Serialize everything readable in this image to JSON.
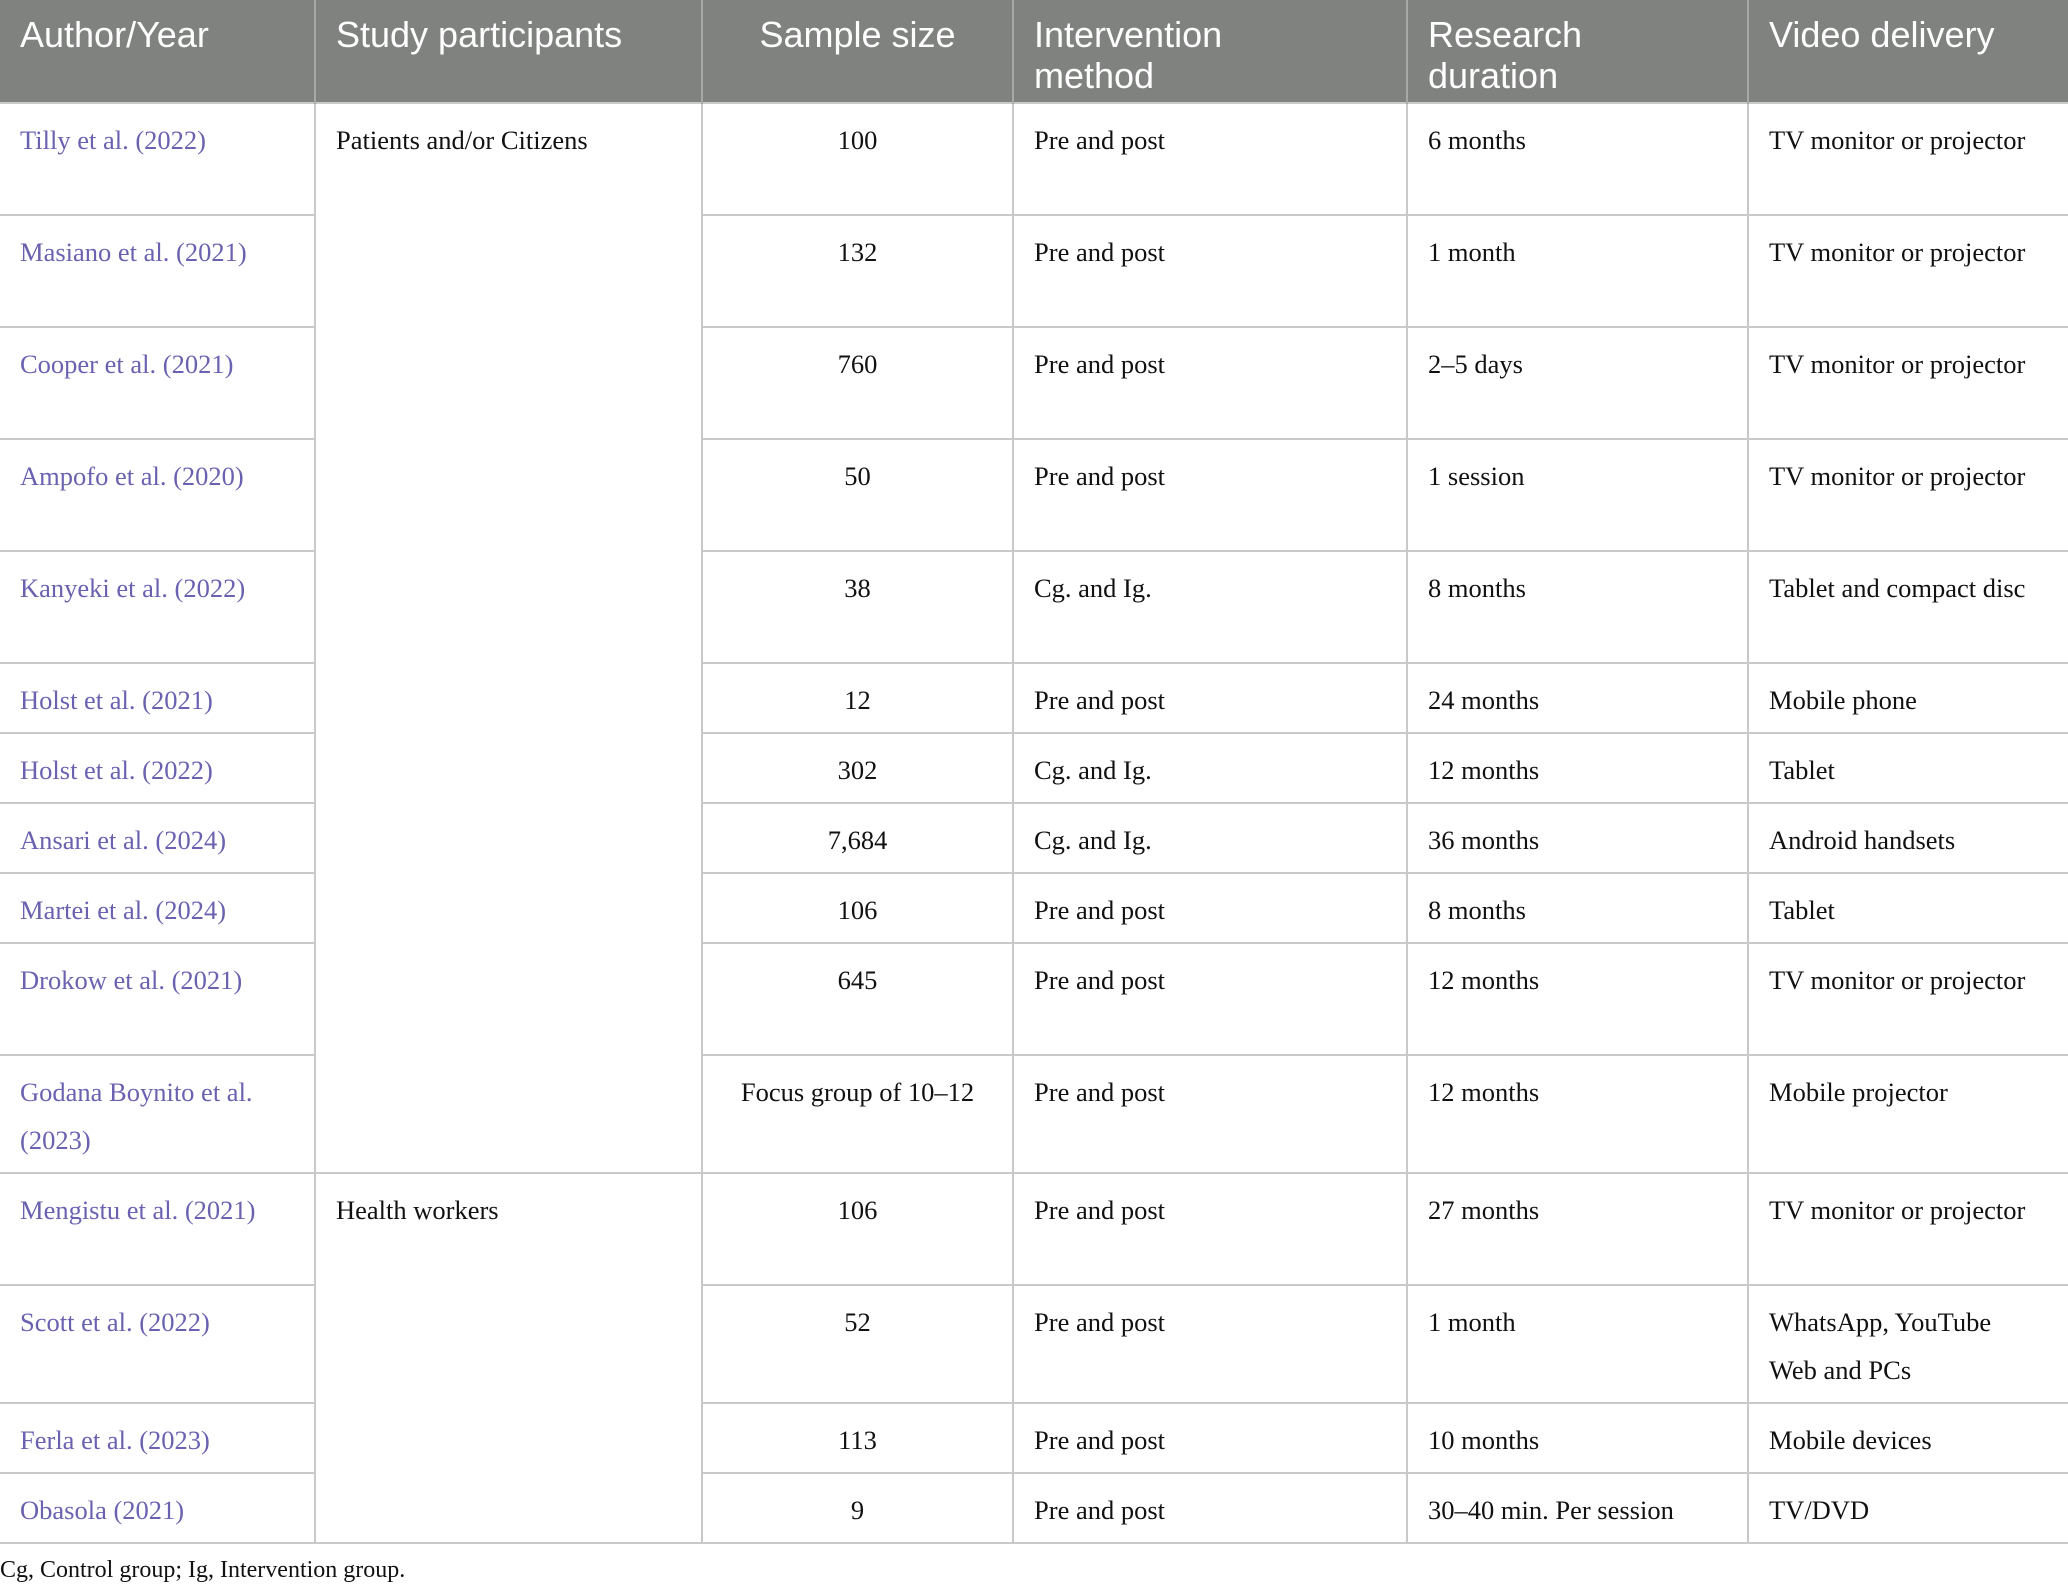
{
  "headers": [
    "Author/Year",
    "Study participants",
    "Sample size",
    "Intervention method",
    "Research duration",
    "Video delivery"
  ],
  "groups": [
    "Patients and/or Citizens",
    "Health workers"
  ],
  "rows": [
    {
      "author": "Tilly et al. (2022)",
      "sample": "100",
      "method": "Pre and post",
      "duration": "6 months",
      "delivery": "TV monitor or projector"
    },
    {
      "author": "Masiano et al. (2021)",
      "sample": "132",
      "method": "Pre and post",
      "duration": "1 month",
      "delivery": "TV monitor or projector"
    },
    {
      "author": "Cooper et al. (2021)",
      "sample": "760",
      "method": "Pre and post",
      "duration": "2–5 days",
      "delivery": "TV monitor or projector"
    },
    {
      "author": "Ampofo et al. (2020)",
      "sample": "50",
      "method": "Pre and post",
      "duration": "1 session",
      "delivery": "TV monitor or projector"
    },
    {
      "author": "Kanyeki et al. (2022)",
      "sample": "38",
      "method": "Cg. and Ig.",
      "duration": "8 months",
      "delivery": "Tablet and compact disc"
    },
    {
      "author": "Holst et al. (2021)",
      "sample": "12",
      "method": "Pre and post",
      "duration": "24 months",
      "delivery": "Mobile phone"
    },
    {
      "author": "Holst et al. (2022)",
      "sample": "302",
      "method": "Cg. and Ig.",
      "duration": "12 months",
      "delivery": "Tablet"
    },
    {
      "author": "Ansari et al. (2024)",
      "sample": "7,684",
      "method": "Cg. and Ig.",
      "duration": "36 months",
      "delivery": "Android handsets"
    },
    {
      "author": "Martei et al. (2024)",
      "sample": "106",
      "method": "Pre and post",
      "duration": "8 months",
      "delivery": "Tablet"
    },
    {
      "author": "Drokow et al. (2021)",
      "sample": "645",
      "method": "Pre and post",
      "duration": "12 months",
      "delivery": "TV monitor or projector"
    },
    {
      "author": "Godana Boynito et al. (2023)",
      "sample": "Focus group of 10–12",
      "method": "Pre and post",
      "duration": "12 months",
      "delivery": "Mobile projector"
    },
    {
      "author": "Mengistu et al. (2021)",
      "sample": "106",
      "method": "Pre and post",
      "duration": "27 months",
      "delivery": "TV monitor or projector"
    },
    {
      "author": "Scott et al. (2022)",
      "sample": "52",
      "method": "Pre and post",
      "duration": "1 month",
      "delivery": "WhatsApp, YouTube Web and PCs"
    },
    {
      "author": "Ferla et al. (2023)",
      "sample": "113",
      "method": "Pre and post",
      "duration": "10 months",
      "delivery": "Mobile devices"
    },
    {
      "author": "Obasola (2021)",
      "sample": "9",
      "method": "Pre and post",
      "duration": "30–40 min. Per session",
      "delivery": "TV/DVD"
    }
  ],
  "footnote": "Cg, Control group; Ig, Intervention group.",
  "colors": {
    "header_bg": "#808280",
    "link": "#6a62b0",
    "border": "#c9c9c9"
  }
}
